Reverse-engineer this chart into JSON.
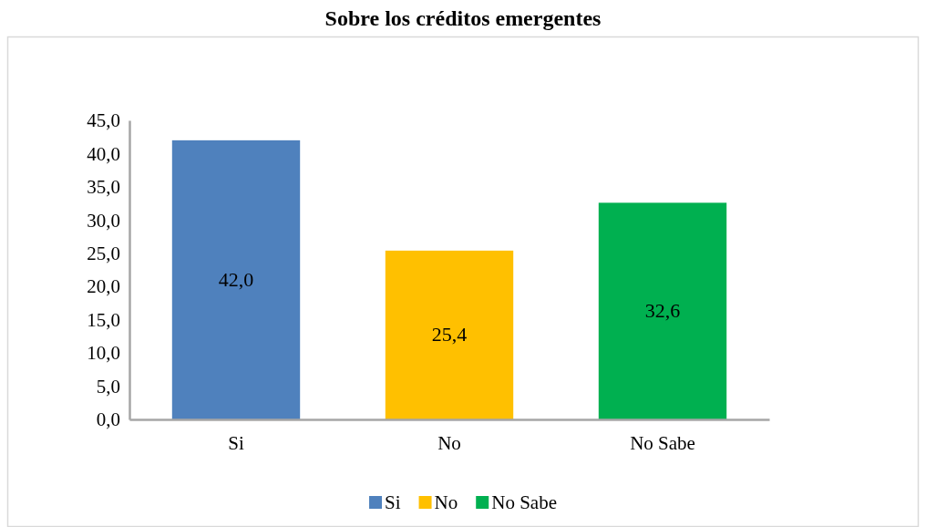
{
  "chart_data": {
    "type": "bar",
    "title": "Sobre los créditos emergentes",
    "categories": [
      "Si",
      "No",
      "No Sabe"
    ],
    "stacked": true,
    "series": [
      {
        "name": "Si",
        "color": "#4f81bd",
        "values": [
          42.0,
          null,
          null
        ],
        "value_labels": [
          "42,0",
          null,
          null
        ]
      },
      {
        "name": "No",
        "color": "#ffc000",
        "values": [
          null,
          25.4,
          null
        ],
        "value_labels": [
          null,
          "25,4",
          null
        ]
      },
      {
        "name": "No Sabe",
        "color": "#00b050",
        "values": [
          null,
          null,
          32.6
        ],
        "value_labels": [
          null,
          null,
          "32,6"
        ]
      }
    ],
    "ylim": [
      0,
      45
    ],
    "yticks": [
      {
        "value": 0,
        "label": "0,0"
      },
      {
        "value": 5,
        "label": "5,0"
      },
      {
        "value": 10,
        "label": "10,0"
      },
      {
        "value": 15,
        "label": "15,0"
      },
      {
        "value": 20,
        "label": "20,0"
      },
      {
        "value": 25,
        "label": "25,0"
      },
      {
        "value": 30,
        "label": "30,0"
      },
      {
        "value": 35,
        "label": "35,0"
      },
      {
        "value": 40,
        "label": "40,0"
      },
      {
        "value": 45,
        "label": "45,0"
      }
    ],
    "legend": "bottom"
  }
}
